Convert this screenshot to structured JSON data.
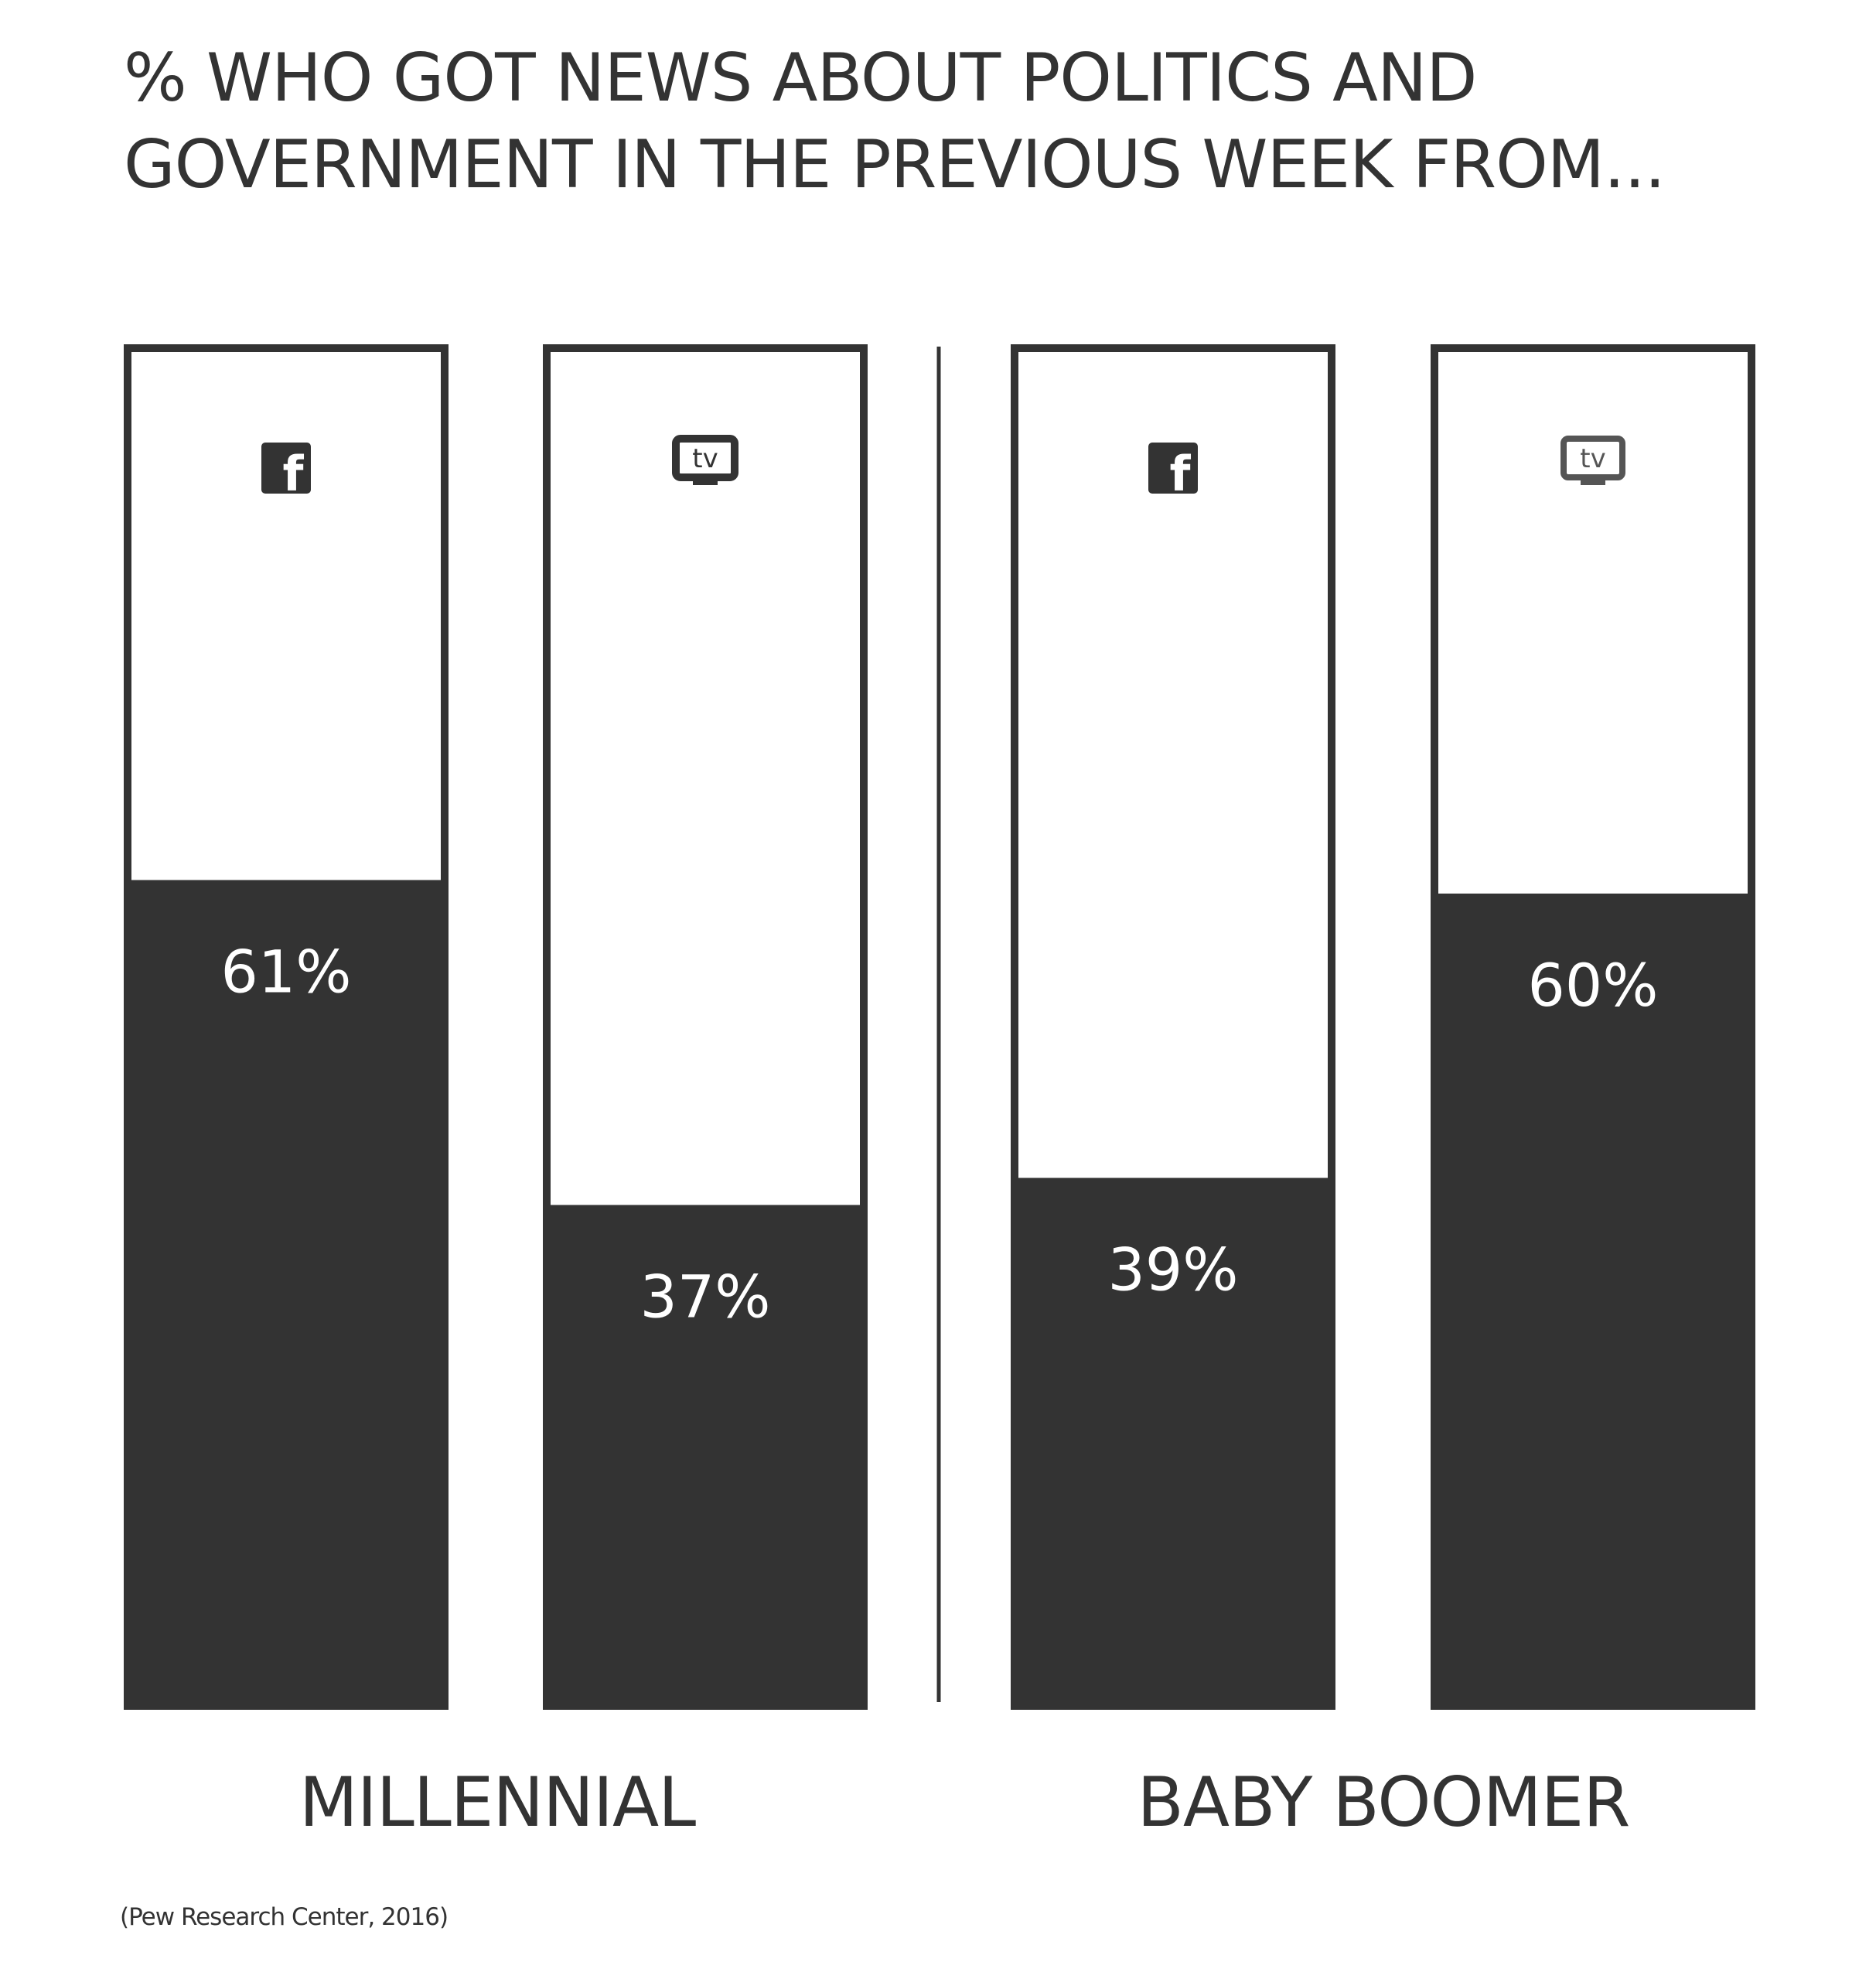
{
  "title": {
    "line1": "% WHO GOT NEWS ABOUT POLITICS AND",
    "line2": "GOVERNMENT IN THE PREVIOUS WEEK FROM..."
  },
  "source": "(Pew Research Center, 2016)",
  "colors": {
    "fill": "#333333",
    "empty": "#ffffff",
    "text": "#333333",
    "label_on_fill": "#ffffff"
  },
  "chart_data": {
    "type": "bar",
    "title": "% WHO GOT NEWS ABOUT POLITICS AND GOVERNMENT IN THE PREVIOUS WEEK FROM...",
    "ylim": [
      0,
      100
    ],
    "grid": false,
    "groups": [
      {
        "label": "MILLENNIAL",
        "bars": [
          {
            "icon": "facebook-icon",
            "value": 61,
            "label": "61%"
          },
          {
            "icon": "tv-icon",
            "value": 37,
            "label": "37%"
          }
        ]
      },
      {
        "label": "BABY BOOMER",
        "bars": [
          {
            "icon": "facebook-icon",
            "value": 39,
            "label": "39%"
          },
          {
            "icon": "tv-icon",
            "value": 60,
            "label": "60%"
          }
        ]
      }
    ]
  }
}
